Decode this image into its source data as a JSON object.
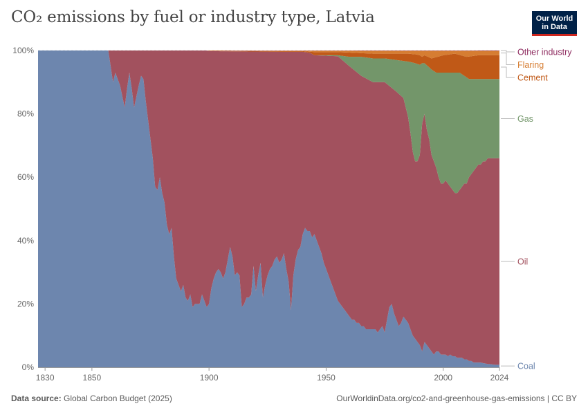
{
  "header": {
    "title": "CO₂ emissions by fuel or industry type, Latvia",
    "logo_line1": "Our World",
    "logo_line2": "in Data"
  },
  "footer": {
    "source_label": "Data source:",
    "source_value": "Global Carbon Budget (2025)",
    "url": "OurWorldinData.org/co2-and-greenhouse-gas-emissions | CC BY"
  },
  "chart_data": {
    "type": "area",
    "stacked_percent": true,
    "xlim": [
      1827,
      2024
    ],
    "ylim": [
      0,
      100
    ],
    "xticks": [
      1830,
      1850,
      1900,
      1950,
      2000,
      2024
    ],
    "yticks": [
      0,
      20,
      40,
      60,
      80,
      100
    ],
    "ytick_labels": [
      "0%",
      "20%",
      "40%",
      "60%",
      "80%",
      "100%"
    ],
    "grid": "horizontal dotted",
    "legend_placement": "right",
    "series": [
      {
        "name": "Coal",
        "color": "#6d86ae",
        "points": [
          [
            1827,
            100
          ],
          [
            1857,
            100
          ],
          [
            1858,
            95
          ],
          [
            1859,
            90
          ],
          [
            1860,
            93
          ],
          [
            1862,
            89
          ],
          [
            1864,
            82
          ],
          [
            1865,
            88
          ],
          [
            1866,
            93
          ],
          [
            1867,
            88
          ],
          [
            1868,
            82
          ],
          [
            1870,
            89
          ],
          [
            1871,
            92
          ],
          [
            1872,
            91
          ],
          [
            1873,
            84
          ],
          [
            1874,
            78
          ],
          [
            1876,
            66
          ],
          [
            1877,
            57
          ],
          [
            1878,
            56
          ],
          [
            1879,
            60
          ],
          [
            1880,
            55
          ],
          [
            1881,
            52
          ],
          [
            1882,
            45
          ],
          [
            1883,
            42
          ],
          [
            1884,
            44
          ],
          [
            1885,
            35
          ],
          [
            1886,
            28
          ],
          [
            1887,
            26
          ],
          [
            1888,
            24
          ],
          [
            1889,
            26
          ],
          [
            1890,
            22
          ],
          [
            1891,
            21
          ],
          [
            1892,
            23
          ],
          [
            1893,
            19
          ],
          [
            1894,
            20
          ],
          [
            1895,
            20
          ],
          [
            1896,
            20
          ],
          [
            1897,
            23
          ],
          [
            1898,
            21
          ],
          [
            1899,
            19
          ],
          [
            1900,
            20
          ],
          [
            1901,
            25
          ],
          [
            1902,
            28
          ],
          [
            1903,
            30
          ],
          [
            1904,
            31
          ],
          [
            1905,
            30
          ],
          [
            1906,
            28
          ],
          [
            1907,
            30
          ],
          [
            1908,
            34
          ],
          [
            1909,
            38
          ],
          [
            1910,
            35
          ],
          [
            1911,
            29
          ],
          [
            1912,
            30
          ],
          [
            1913,
            29
          ],
          [
            1914,
            19
          ],
          [
            1915,
            20
          ],
          [
            1916,
            22
          ],
          [
            1917,
            22
          ],
          [
            1918,
            23
          ],
          [
            1919,
            32
          ],
          [
            1920,
            24
          ],
          [
            1921,
            29
          ],
          [
            1922,
            33
          ],
          [
            1923,
            22
          ],
          [
            1924,
            26
          ],
          [
            1925,
            29
          ],
          [
            1926,
            31
          ],
          [
            1927,
            32
          ],
          [
            1928,
            34
          ],
          [
            1929,
            35
          ],
          [
            1930,
            33
          ],
          [
            1931,
            34
          ],
          [
            1932,
            36
          ],
          [
            1933,
            31
          ],
          [
            1934,
            27
          ],
          [
            1935,
            18
          ],
          [
            1936,
            29
          ],
          [
            1937,
            34
          ],
          [
            1938,
            37
          ],
          [
            1939,
            38
          ],
          [
            1940,
            42
          ],
          [
            1941,
            44
          ],
          [
            1942,
            43
          ],
          [
            1943,
            43
          ],
          [
            1944,
            41
          ],
          [
            1945,
            42
          ],
          [
            1946,
            40
          ],
          [
            1947,
            38
          ],
          [
            1948,
            36
          ],
          [
            1949,
            33
          ],
          [
            1950,
            31
          ],
          [
            1951,
            29
          ],
          [
            1952,
            27
          ],
          [
            1953,
            25
          ],
          [
            1954,
            23
          ],
          [
            1955,
            21
          ],
          [
            1956,
            20
          ],
          [
            1957,
            19
          ],
          [
            1958,
            18
          ],
          [
            1959,
            17
          ],
          [
            1960,
            16
          ],
          [
            1961,
            15
          ],
          [
            1962,
            15
          ],
          [
            1963,
            14
          ],
          [
            1964,
            14
          ],
          [
            1965,
            13
          ],
          [
            1966,
            13
          ],
          [
            1967,
            12
          ],
          [
            1968,
            12
          ],
          [
            1969,
            12
          ],
          [
            1970,
            12
          ],
          [
            1971,
            12
          ],
          [
            1972,
            11
          ],
          [
            1973,
            12
          ],
          [
            1974,
            13
          ],
          [
            1975,
            11
          ],
          [
            1976,
            15
          ],
          [
            1977,
            19
          ],
          [
            1978,
            20
          ],
          [
            1979,
            17
          ],
          [
            1980,
            15
          ],
          [
            1981,
            13
          ],
          [
            1982,
            14
          ],
          [
            1983,
            16
          ],
          [
            1984,
            15
          ],
          [
            1985,
            14
          ],
          [
            1986,
            12
          ],
          [
            1987,
            10
          ],
          [
            1988,
            9
          ],
          [
            1989,
            8
          ],
          [
            1990,
            7
          ],
          [
            1991,
            5
          ],
          [
            1992,
            8
          ],
          [
            1993,
            7
          ],
          [
            1994,
            6
          ],
          [
            1995,
            5
          ],
          [
            1996,
            4
          ],
          [
            1997,
            5
          ],
          [
            1998,
            5
          ],
          [
            1999,
            4
          ],
          [
            2000,
            4
          ],
          [
            2001,
            4
          ],
          [
            2002,
            3.5
          ],
          [
            2003,
            4
          ],
          [
            2004,
            3.5
          ],
          [
            2005,
            3.5
          ],
          [
            2006,
            3
          ],
          [
            2007,
            3
          ],
          [
            2008,
            3
          ],
          [
            2009,
            2.5
          ],
          [
            2010,
            2.5
          ],
          [
            2011,
            2
          ],
          [
            2012,
            2
          ],
          [
            2013,
            1.5
          ],
          [
            2014,
            1.5
          ],
          [
            2015,
            1.5
          ],
          [
            2016,
            1.5
          ],
          [
            2017,
            1.3
          ],
          [
            2018,
            1.2
          ],
          [
            2019,
            1
          ],
          [
            2020,
            1
          ],
          [
            2021,
            0.9
          ],
          [
            2022,
            0.8
          ],
          [
            2023,
            0.8
          ],
          [
            2024,
            0.8
          ]
        ]
      },
      {
        "name": "Oil",
        "color": "#a2515e",
        "total_points": [
          [
            1827,
            100
          ],
          [
            1899,
            100
          ],
          [
            1900,
            99.8
          ],
          [
            1930,
            99.6
          ],
          [
            1940,
            99.6
          ],
          [
            1943,
            99.3
          ],
          [
            1945,
            98.5
          ],
          [
            1955,
            98.2
          ],
          [
            1960,
            95
          ],
          [
            1965,
            92
          ],
          [
            1970,
            90
          ],
          [
            1975,
            90
          ],
          [
            1980,
            87
          ],
          [
            1983,
            85
          ],
          [
            1985,
            79
          ],
          [
            1986,
            74
          ],
          [
            1987,
            68
          ],
          [
            1988,
            65
          ],
          [
            1989,
            65
          ],
          [
            1990,
            67
          ],
          [
            1991,
            77
          ],
          [
            1992,
            80
          ],
          [
            1993,
            75
          ],
          [
            1994,
            72
          ],
          [
            1995,
            67
          ],
          [
            1996,
            65
          ],
          [
            1997,
            63
          ],
          [
            1998,
            60
          ],
          [
            1999,
            58
          ],
          [
            2000,
            58
          ],
          [
            2001,
            59
          ],
          [
            2002,
            58
          ],
          [
            2003,
            57
          ],
          [
            2004,
            56
          ],
          [
            2005,
            55
          ],
          [
            2006,
            55
          ],
          [
            2007,
            56
          ],
          [
            2008,
            57
          ],
          [
            2009,
            58
          ],
          [
            2010,
            58
          ],
          [
            2011,
            60
          ],
          [
            2012,
            61
          ],
          [
            2013,
            62
          ],
          [
            2014,
            63
          ],
          [
            2015,
            64
          ],
          [
            2016,
            64
          ],
          [
            2017,
            65
          ],
          [
            2018,
            65
          ],
          [
            2019,
            66
          ],
          [
            2020,
            66
          ],
          [
            2021,
            66
          ],
          [
            2022,
            66
          ],
          [
            2023,
            66
          ],
          [
            2024,
            66
          ]
        ]
      },
      {
        "name": "Gas",
        "color": "#73966a",
        "total_points": [
          [
            1827,
            100
          ],
          [
            1899,
            100
          ],
          [
            1900,
            99.8
          ],
          [
            1930,
            99.6
          ],
          [
            1940,
            99.6
          ],
          [
            1943,
            99.3
          ],
          [
            1945,
            98.5
          ],
          [
            1955,
            98.5
          ],
          [
            1960,
            98
          ],
          [
            1965,
            98
          ],
          [
            1970,
            97.5
          ],
          [
            1975,
            97.5
          ],
          [
            1980,
            97
          ],
          [
            1985,
            96.5
          ],
          [
            1988,
            96
          ],
          [
            1990,
            95.5
          ],
          [
            1991,
            96
          ],
          [
            1992,
            96
          ],
          [
            1995,
            94
          ],
          [
            1997,
            93
          ],
          [
            1998,
            93
          ],
          [
            2000,
            93
          ],
          [
            2005,
            93
          ],
          [
            2006,
            93
          ],
          [
            2007,
            93
          ],
          [
            2008,
            92.5
          ],
          [
            2009,
            92
          ],
          [
            2010,
            91.5
          ],
          [
            2011,
            91
          ],
          [
            2013,
            91
          ],
          [
            2015,
            91
          ],
          [
            2016,
            91
          ],
          [
            2018,
            91
          ],
          [
            2020,
            91
          ],
          [
            2022,
            91
          ],
          [
            2024,
            91
          ]
        ]
      },
      {
        "name": "Cement",
        "color": "#c05917",
        "total_points": [
          [
            1827,
            100
          ],
          [
            1899,
            100
          ],
          [
            1900,
            99.9
          ],
          [
            1940,
            99.8
          ],
          [
            1945,
            99.5
          ],
          [
            1955,
            99.5
          ],
          [
            1970,
            99
          ],
          [
            1980,
            99
          ],
          [
            1985,
            99
          ],
          [
            1988,
            98.8
          ],
          [
            1990,
            98.5
          ],
          [
            1991,
            98
          ],
          [
            1992,
            98.5
          ],
          [
            1995,
            97.5
          ],
          [
            2000,
            98.5
          ],
          [
            2005,
            99
          ],
          [
            2010,
            98
          ],
          [
            2015,
            98.5
          ],
          [
            2020,
            98.5
          ],
          [
            2024,
            98.5
          ]
        ]
      },
      {
        "name": "Flaring",
        "color": "#d67d32",
        "total_points": [
          [
            1827,
            100
          ],
          [
            2024,
            99.9
          ]
        ]
      },
      {
        "name": "Other industry",
        "color": "#8e2b5f",
        "total_points": [
          [
            1827,
            100
          ],
          [
            2024,
            100
          ]
        ]
      }
    ]
  }
}
